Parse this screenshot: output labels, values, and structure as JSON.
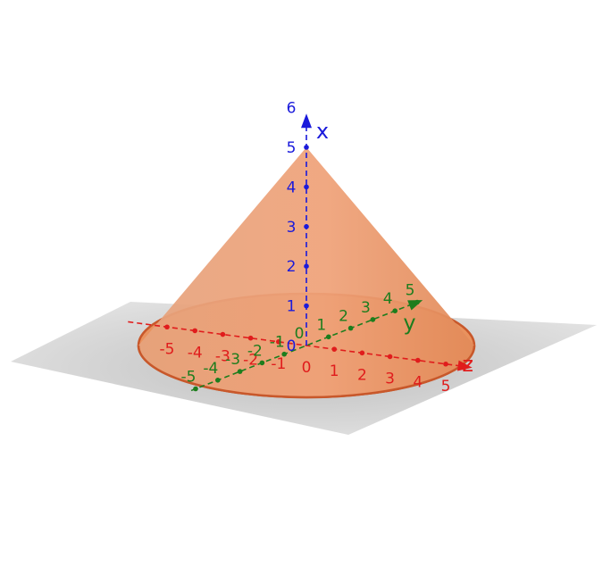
{
  "axes": {
    "x": {
      "name": "x",
      "color": "#1a1adb",
      "ticks": [
        {
          "label": "0",
          "value": 0
        },
        {
          "label": "1",
          "value": 1
        },
        {
          "label": "2",
          "value": 2
        },
        {
          "label": "3",
          "value": 3
        },
        {
          "label": "4",
          "value": 4
        },
        {
          "label": "5",
          "value": 5
        },
        {
          "label": "6",
          "value": 6
        }
      ]
    },
    "y": {
      "name": "y",
      "color": "#1d7d1d",
      "ticks": [
        {
          "label": "-5",
          "value": -5
        },
        {
          "label": "-4",
          "value": -4
        },
        {
          "label": "-3",
          "value": -3
        },
        {
          "label": "-2",
          "value": -2
        },
        {
          "label": "-1",
          "value": -1
        },
        {
          "label": "0",
          "value": 0
        },
        {
          "label": "1",
          "value": 1
        },
        {
          "label": "2",
          "value": 2
        },
        {
          "label": "3",
          "value": 3
        },
        {
          "label": "4",
          "value": 4
        },
        {
          "label": "5",
          "value": 5
        }
      ]
    },
    "z": {
      "name": "z",
      "color": "#e01c1c",
      "ticks": [
        {
          "label": "-5",
          "value": -5
        },
        {
          "label": "-4",
          "value": -4
        },
        {
          "label": "-3",
          "value": -3
        },
        {
          "label": "-2",
          "value": -2
        },
        {
          "label": "-1",
          "value": -1
        },
        {
          "label": "0",
          "value": 0
        },
        {
          "label": "1",
          "value": 1
        },
        {
          "label": "2",
          "value": 2
        },
        {
          "label": "3",
          "value": 3
        },
        {
          "label": "4",
          "value": 4
        },
        {
          "label": "5",
          "value": 5
        }
      ]
    }
  },
  "cone": {
    "apex_height": 5,
    "base_radius": 5,
    "fill_color": "#e9925e",
    "edge_color": "#c8582b"
  },
  "plane_color": "#bcbcbc"
}
